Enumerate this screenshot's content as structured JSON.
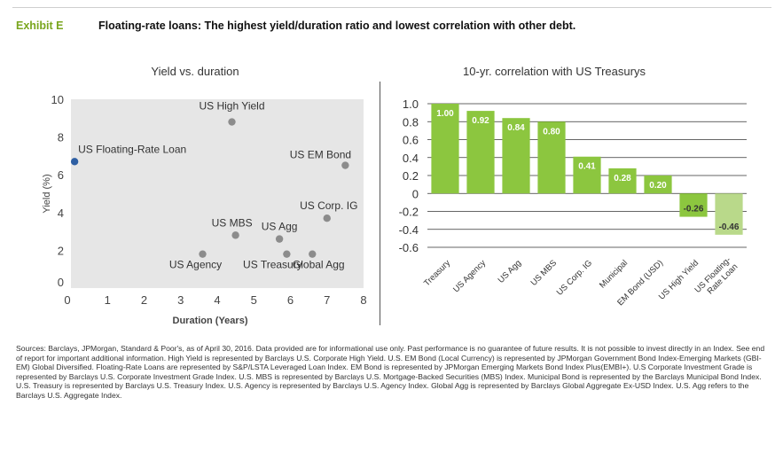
{
  "header": {
    "exhibit_label": "Exhibit E",
    "title": "Floating-rate loans: The highest yield/duration ratio and lowest correlation with other debt."
  },
  "colors": {
    "accent_green": "#8cc63f",
    "light_green": "#b9d98a",
    "point_gray": "#8c8c8c",
    "point_blue": "#2e5fa3",
    "plot_bg": "#e6e6e6"
  },
  "chart_data": [
    {
      "type": "scatter",
      "title": "Yield vs. duration",
      "xlabel": "Duration (Years)",
      "ylabel": "Yield (%)",
      "xlim": [
        0,
        8
      ],
      "ylim": [
        0,
        10
      ],
      "xticks": [
        "0",
        "1",
        "2",
        "3",
        "4",
        "5",
        "6",
        "7",
        "8"
      ],
      "yticks": [
        "0",
        "2",
        "4",
        "6",
        "8",
        "10"
      ],
      "grid": false,
      "points": [
        {
          "label": "US Floating-Rate Loan",
          "x": 0.1,
          "y": 6.7,
          "highlight": true
        },
        {
          "label": "US High Yield",
          "x": 4.4,
          "y": 8.8
        },
        {
          "label": "US EM Bond",
          "x": 7.5,
          "y": 6.5
        },
        {
          "label": "US Corp. IG",
          "x": 7.0,
          "y": 3.7
        },
        {
          "label": "US MBS",
          "x": 4.5,
          "y": 2.8
        },
        {
          "label": "US Agg",
          "x": 5.7,
          "y": 2.6
        },
        {
          "label": "US Agency",
          "x": 3.6,
          "y": 1.8
        },
        {
          "label": "US Treasury",
          "x": 5.9,
          "y": 1.8
        },
        {
          "label": "Global Agg",
          "x": 6.6,
          "y": 1.8
        }
      ]
    },
    {
      "type": "bar",
      "title": "10-yr. correlation with US Treasurys",
      "ylim": [
        -0.6,
        1.0
      ],
      "yticks": [
        "1.0",
        "0.8",
        "0.6",
        "0.4",
        "0.2",
        "0",
        "-0.2",
        "-0.4",
        "-0.6"
      ],
      "grid": true,
      "categories": [
        "Treasury",
        "US Agency",
        "US Agg",
        "US MBS",
        "US Corp. IG",
        "Municipal",
        "EM Bond (USD)",
        "US High Yield",
        "US Floating-\nRate Loan"
      ],
      "values": [
        1.0,
        0.92,
        0.84,
        0.8,
        0.41,
        0.28,
        0.2,
        -0.26,
        -0.46
      ],
      "value_labels": [
        "1.00",
        "0.92",
        "0.84",
        "0.80",
        "0.41",
        "0.28",
        "0.20",
        "-0.26",
        "-0.46"
      ]
    }
  ],
  "sources": "Sources: Barclays, JPMorgan, Standard & Poor's, as of April 30, 2016. Data provided are for informational use only. Past performance is no guarantee of future results. It is not possible to invest directly in an Index. See end of report for important additional information. High Yield is represented by Barclays U.S. Corporate High Yield. U.S. EM Bond (Local Currency) is represented by JPMorgan Government Bond Index-Emerging Markets (GBI-EM) Global Diversified. Floating-Rate Loans are represented by S&P/LSTA Leveraged Loan Index. EM Bond is represented by JPMorgan Emerging Markets Bond Index Plus(EMBI+). U.S Corporate Investment Grade is represented by Barclays U.S. Corporate Investment Grade Index. U.S. MBS is represented by Barclays U.S. Mortgage-Backed Securities (MBS) Index. Municipal Bond is represented by the Barclays Municipal Bond Index. U.S. Treasury is represented by Barclays U.S. Treasury Index. U.S. Agency is represented by Barclays U.S. Agency Index. Global Agg is represented by Barclays Global Aggregate Ex-USD Index. U.S. Agg refers to the Barclays U.S. Aggregate Index."
}
